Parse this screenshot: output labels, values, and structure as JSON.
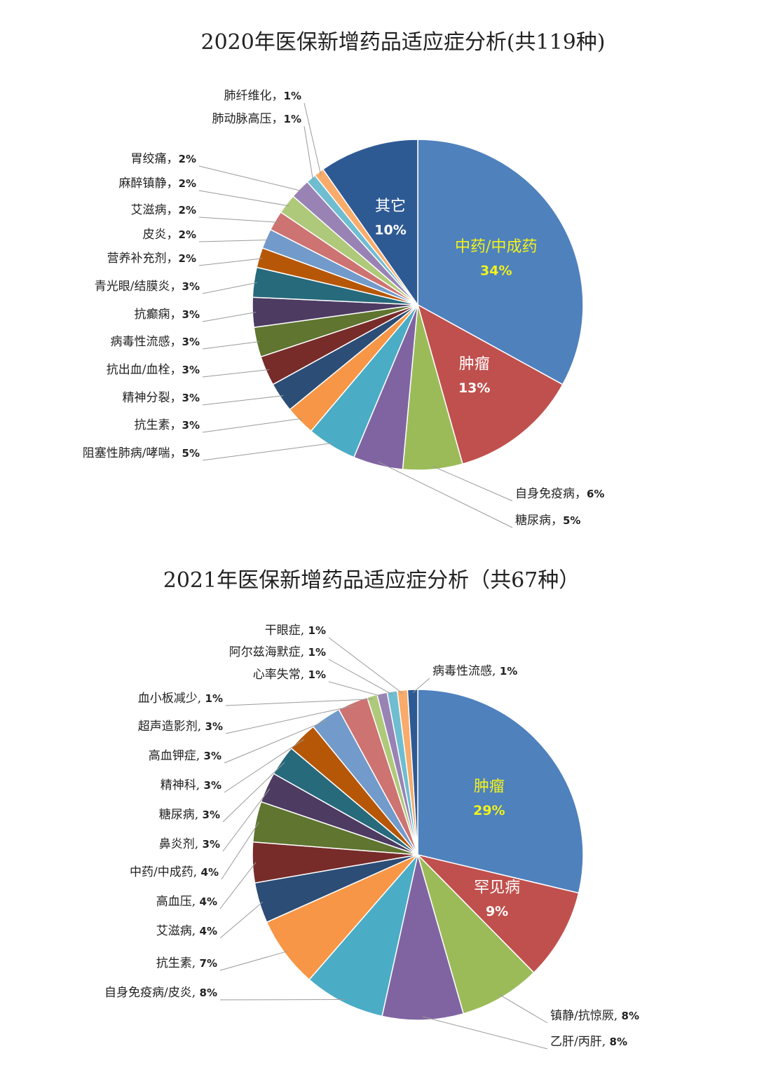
{
  "chart_data": [
    {
      "type": "pie",
      "title": "2020年医保新增药品适应症分析(共119种)",
      "label_separator": "，",
      "categories": [
        "中药/中成药",
        "肿瘤",
        "自身免疫病",
        "糖尿病",
        "阻塞性肺病/哮喘",
        "抗生素",
        "精神分裂",
        "抗出血/血栓",
        "病毒性流感",
        "抗癫痫",
        "青光眼/结膜炎",
        "营养补充剂",
        "皮炎",
        "艾滋病",
        "麻醉镇静",
        "胃绞痛",
        "肺动脉高压",
        "肺纤维化",
        "其它"
      ],
      "values": [
        34,
        13,
        6,
        5,
        5,
        3,
        3,
        3,
        3,
        3,
        3,
        2,
        2,
        2,
        2,
        2,
        1,
        1,
        10
      ],
      "value_labels": [
        "34%",
        "13%",
        "6%",
        "5%",
        "5%",
        "3%",
        "3%",
        "3%",
        "3%",
        "3%",
        "3%",
        "2%",
        "2%",
        "2%",
        "2%",
        "2%",
        "1%",
        "1%",
        "10%"
      ],
      "colors": [
        "#4f81bd",
        "#c0504d",
        "#9bbb59",
        "#8064a2",
        "#4bacc6",
        "#f79646",
        "#2c4d75",
        "#772c2a",
        "#5f7530",
        "#4d3b62",
        "#276a7c",
        "#b65708",
        "#729aca",
        "#cd7371",
        "#afc97a",
        "#9983b5",
        "#6fbdd1",
        "#f9ab6b",
        "#2e5a94"
      ]
    },
    {
      "type": "pie",
      "title": "2021年医保新增药品适应症分析（共67种）",
      "label_separator": ", ",
      "categories": [
        "肿瘤",
        "罕见病",
        "镇静/抗惊厥",
        "乙肝/丙肝",
        "自身免疫病/皮炎",
        "抗生素",
        "艾滋病",
        "高血压",
        "中药/中成药",
        "鼻炎剂",
        "糖尿病",
        "精神科",
        "高血钾症",
        "超声造影剂",
        "血小板减少",
        "心率失常",
        "阿尔兹海默症",
        "干眼症",
        "病毒性流感"
      ],
      "values": [
        29,
        9,
        8,
        8,
        8,
        7,
        4,
        4,
        4,
        3,
        3,
        3,
        3,
        3,
        1,
        1,
        1,
        1,
        1
      ],
      "value_labels": [
        "29%",
        "9%",
        "8%",
        "8%",
        "8%",
        "7%",
        "4%",
        "4%",
        "4%",
        "3%",
        "3%",
        "3%",
        "3%",
        "3%",
        "1%",
        "1%",
        "1%",
        "1%",
        "1%"
      ],
      "colors": [
        "#4f81bd",
        "#c0504d",
        "#9bbb59",
        "#8064a2",
        "#4bacc6",
        "#f79646",
        "#2c4d75",
        "#772c2a",
        "#5f7530",
        "#4d3b62",
        "#276a7c",
        "#b65708",
        "#729aca",
        "#cd7371",
        "#afc97a",
        "#9983b5",
        "#6fbdd1",
        "#f9ab6b",
        "#2e5a94"
      ]
    }
  ]
}
